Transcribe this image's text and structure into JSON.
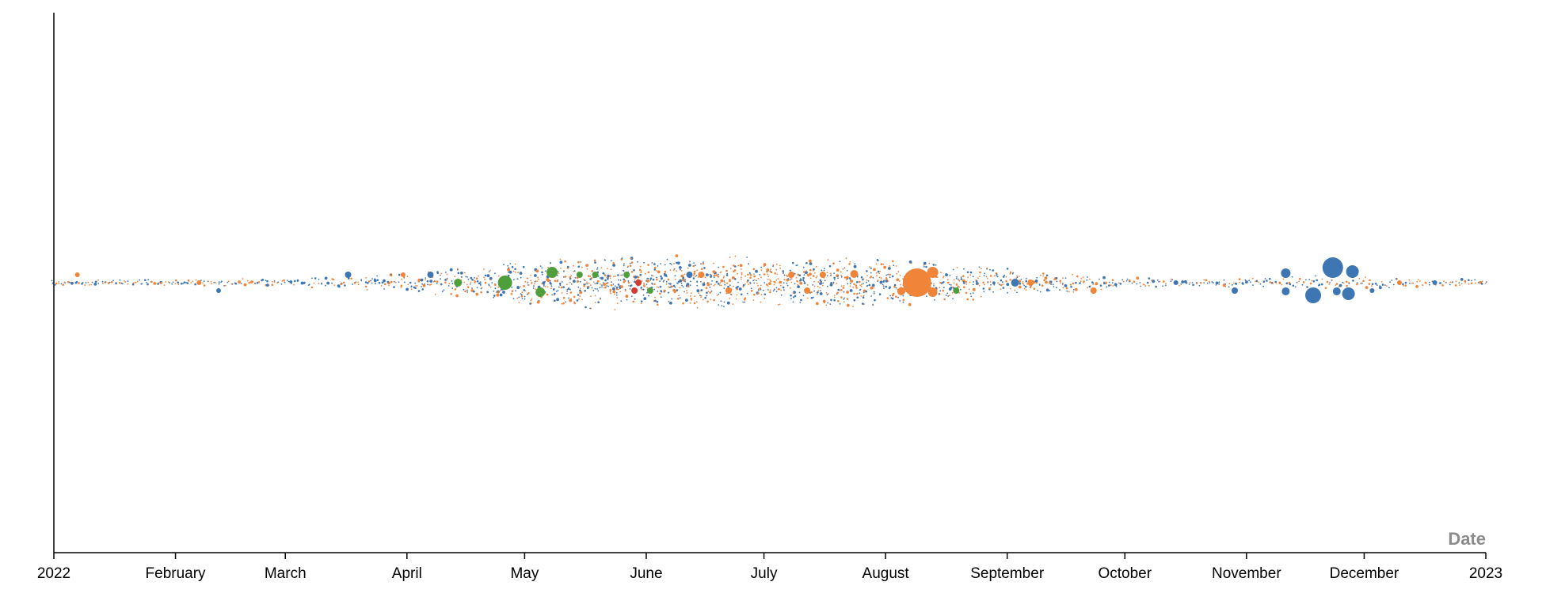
{
  "chart_data": {
    "type": "scatter",
    "subtype": "beeswarm",
    "xlabel": "Date",
    "ylabel": "",
    "xlim": [
      "2022-01-01",
      "2023-01-01"
    ],
    "x_ticks": [
      {
        "date": "2022-01-01",
        "label": "2022"
      },
      {
        "date": "2022-02-01",
        "label": "February"
      },
      {
        "date": "2022-03-01",
        "label": "March"
      },
      {
        "date": "2022-04-01",
        "label": "April"
      },
      {
        "date": "2022-05-01",
        "label": "May"
      },
      {
        "date": "2022-06-01",
        "label": "June"
      },
      {
        "date": "2022-07-01",
        "label": "July"
      },
      {
        "date": "2022-08-01",
        "label": "August"
      },
      {
        "date": "2022-09-01",
        "label": "September"
      },
      {
        "date": "2022-10-01",
        "label": "October"
      },
      {
        "date": "2022-11-01",
        "label": "November"
      },
      {
        "date": "2022-12-01",
        "label": "December"
      },
      {
        "date": "2023-01-01",
        "label": "2023"
      }
    ],
    "grid": false,
    "legend": "none",
    "colors": {
      "blue": "#3d76b3",
      "orange": "#f0853a",
      "green": "#4f9e3c",
      "red": "#d63a31"
    },
    "density": [
      {
        "date": "2022-01-01",
        "count": 10
      },
      {
        "date": "2022-02-01",
        "count": 10
      },
      {
        "date": "2022-03-01",
        "count": 14
      },
      {
        "date": "2022-03-20",
        "count": 22
      },
      {
        "date": "2022-04-01",
        "count": 30
      },
      {
        "date": "2022-04-20",
        "count": 55
      },
      {
        "date": "2022-05-01",
        "count": 70
      },
      {
        "date": "2022-05-20",
        "count": 85
      },
      {
        "date": "2022-06-01",
        "count": 90
      },
      {
        "date": "2022-06-20",
        "count": 85
      },
      {
        "date": "2022-07-01",
        "count": 80
      },
      {
        "date": "2022-07-20",
        "count": 82
      },
      {
        "date": "2022-08-01",
        "count": 75
      },
      {
        "date": "2022-08-15",
        "count": 65
      },
      {
        "date": "2022-09-01",
        "count": 45
      },
      {
        "date": "2022-09-15",
        "count": 35
      },
      {
        "date": "2022-10-01",
        "count": 20
      },
      {
        "date": "2022-10-15",
        "count": 14
      },
      {
        "date": "2022-11-01",
        "count": 14
      },
      {
        "date": "2022-11-20",
        "count": 22
      },
      {
        "date": "2022-12-01",
        "count": 22
      },
      {
        "date": "2022-12-15",
        "count": 14
      },
      {
        "date": "2023-01-01",
        "count": 10
      }
    ],
    "large_points": [
      {
        "date": "2022-01-07",
        "size": 3,
        "color": "orange",
        "side": "up"
      },
      {
        "date": "2022-02-07",
        "size": 3,
        "color": "orange",
        "side": "mid"
      },
      {
        "date": "2022-02-12",
        "size": 3,
        "color": "blue",
        "side": "down"
      },
      {
        "date": "2022-03-17",
        "size": 4,
        "color": "blue",
        "side": "up"
      },
      {
        "date": "2022-03-31",
        "size": 3,
        "color": "orange",
        "side": "up"
      },
      {
        "date": "2022-04-07",
        "size": 4,
        "color": "blue",
        "side": "up"
      },
      {
        "date": "2022-04-14",
        "size": 5,
        "color": "green",
        "side": "mid"
      },
      {
        "date": "2022-04-26",
        "size": 9,
        "color": "green",
        "side": "mid"
      },
      {
        "date": "2022-05-08",
        "size": 7,
        "color": "green",
        "side": "up"
      },
      {
        "date": "2022-05-05",
        "size": 6,
        "color": "green",
        "side": "down"
      },
      {
        "date": "2022-05-15",
        "size": 4,
        "color": "green",
        "side": "up"
      },
      {
        "date": "2022-05-19",
        "size": 4,
        "color": "green",
        "side": "up"
      },
      {
        "date": "2022-05-27",
        "size": 4,
        "color": "green",
        "side": "up"
      },
      {
        "date": "2022-05-30",
        "size": 4,
        "color": "red",
        "side": "mid"
      },
      {
        "date": "2022-05-29",
        "size": 4,
        "color": "red",
        "side": "down"
      },
      {
        "date": "2022-06-02",
        "size": 4,
        "color": "green",
        "side": "down"
      },
      {
        "date": "2022-06-12",
        "size": 4,
        "color": "blue",
        "side": "up"
      },
      {
        "date": "2022-06-15",
        "size": 4,
        "color": "orange",
        "side": "up"
      },
      {
        "date": "2022-06-22",
        "size": 4,
        "color": "orange",
        "side": "down"
      },
      {
        "date": "2022-07-08",
        "size": 4,
        "color": "orange",
        "side": "up"
      },
      {
        "date": "2022-07-12",
        "size": 4,
        "color": "orange",
        "side": "down"
      },
      {
        "date": "2022-07-16",
        "size": 4,
        "color": "orange",
        "side": "up"
      },
      {
        "date": "2022-07-24",
        "size": 5,
        "color": "orange",
        "side": "up"
      },
      {
        "date": "2022-08-05",
        "size": 5,
        "color": "orange",
        "side": "down"
      },
      {
        "date": "2022-08-09",
        "size": 18,
        "color": "orange",
        "side": "mid"
      },
      {
        "date": "2022-08-13",
        "size": 7,
        "color": "orange",
        "side": "up"
      },
      {
        "date": "2022-08-13",
        "size": 6,
        "color": "orange",
        "side": "down"
      },
      {
        "date": "2022-08-19",
        "size": 4,
        "color": "green",
        "side": "down"
      },
      {
        "date": "2022-09-03",
        "size": 5,
        "color": "blue",
        "side": "mid"
      },
      {
        "date": "2022-09-07",
        "size": 4,
        "color": "orange",
        "side": "mid"
      },
      {
        "date": "2022-09-23",
        "size": 4,
        "color": "orange",
        "side": "down"
      },
      {
        "date": "2022-10-14",
        "size": 3,
        "color": "blue",
        "side": "mid"
      },
      {
        "date": "2022-10-29",
        "size": 4,
        "color": "blue",
        "side": "down"
      },
      {
        "date": "2022-11-11",
        "size": 6,
        "color": "blue",
        "side": "up"
      },
      {
        "date": "2022-11-11",
        "size": 5,
        "color": "blue",
        "side": "down"
      },
      {
        "date": "2022-11-18",
        "size": 10,
        "color": "blue",
        "side": "down"
      },
      {
        "date": "2022-11-23",
        "size": 13,
        "color": "blue",
        "side": "up"
      },
      {
        "date": "2022-11-24",
        "size": 5,
        "color": "blue",
        "side": "down"
      },
      {
        "date": "2022-11-27",
        "size": 8,
        "color": "blue",
        "side": "down"
      },
      {
        "date": "2022-11-28",
        "size": 8,
        "color": "blue",
        "side": "up"
      },
      {
        "date": "2022-12-03",
        "size": 3,
        "color": "blue",
        "side": "down"
      },
      {
        "date": "2022-12-10",
        "size": 3,
        "color": "orange",
        "side": "mid"
      },
      {
        "date": "2022-12-19",
        "size": 3,
        "color": "blue",
        "side": "mid"
      }
    ]
  }
}
